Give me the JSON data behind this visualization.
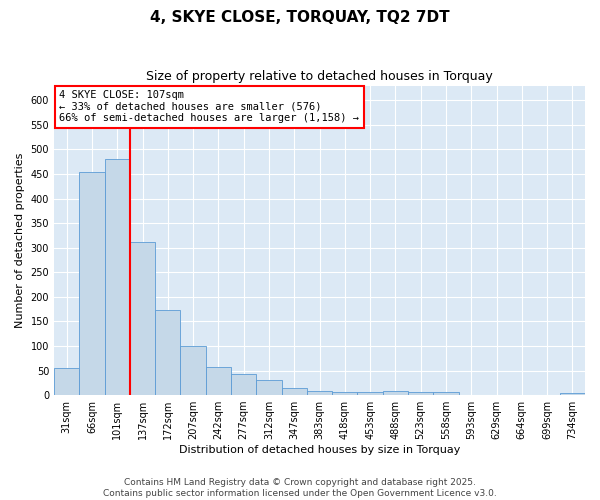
{
  "title": "4, SKYE CLOSE, TORQUAY, TQ2 7DT",
  "subtitle": "Size of property relative to detached houses in Torquay",
  "xlabel": "Distribution of detached houses by size in Torquay",
  "ylabel": "Number of detached properties",
  "categories": [
    "31sqm",
    "66sqm",
    "101sqm",
    "137sqm",
    "172sqm",
    "207sqm",
    "242sqm",
    "277sqm",
    "312sqm",
    "347sqm",
    "383sqm",
    "418sqm",
    "453sqm",
    "488sqm",
    "523sqm",
    "558sqm",
    "593sqm",
    "629sqm",
    "664sqm",
    "699sqm",
    "734sqm"
  ],
  "values": [
    55,
    455,
    480,
    312,
    173,
    100,
    58,
    42,
    30,
    15,
    8,
    7,
    7,
    8,
    6,
    6,
    0,
    0,
    0,
    0,
    4
  ],
  "bar_color": "#c5d8e8",
  "bar_edge_color": "#5b9bd5",
  "vline_color": "red",
  "vline_position": 2.5,
  "annotation_text": "4 SKYE CLOSE: 107sqm\n← 33% of detached houses are smaller (576)\n66% of semi-detached houses are larger (1,158) →",
  "annotation_box_color": "white",
  "annotation_box_edge": "red",
  "ylim": [
    0,
    630
  ],
  "yticks": [
    0,
    50,
    100,
    150,
    200,
    250,
    300,
    350,
    400,
    450,
    500,
    550,
    600
  ],
  "background_color": "#dce9f5",
  "grid_color": "#ffffff",
  "footer": "Contains HM Land Registry data © Crown copyright and database right 2025.\nContains public sector information licensed under the Open Government Licence v3.0.",
  "title_fontsize": 11,
  "subtitle_fontsize": 9,
  "axis_label_fontsize": 8,
  "tick_fontsize": 7,
  "annotation_fontsize": 7.5,
  "footer_fontsize": 6.5
}
